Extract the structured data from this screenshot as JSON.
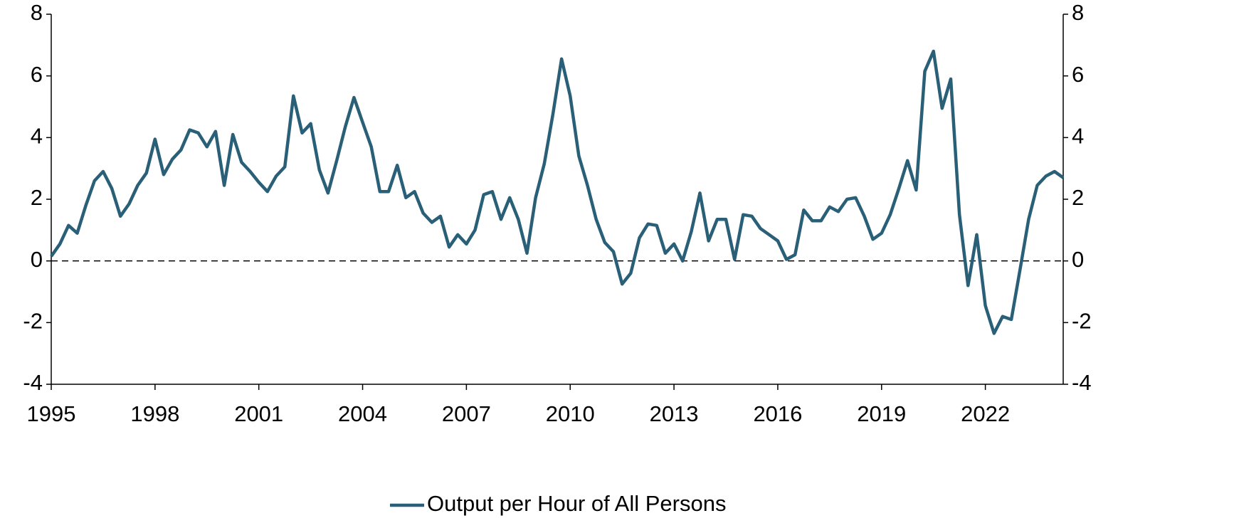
{
  "chart_data": {
    "type": "line",
    "x": [
      1995,
      1995.25,
      1995.5,
      1995.75,
      1996,
      1996.25,
      1996.5,
      1996.75,
      1997,
      1997.25,
      1997.5,
      1997.75,
      1998,
      1998.25,
      1998.5,
      1998.75,
      1999,
      1999.25,
      1999.5,
      1999.75,
      2000,
      2000.25,
      2000.5,
      2000.75,
      2001,
      2001.25,
      2001.5,
      2001.75,
      2002,
      2002.25,
      2002.5,
      2002.75,
      2003,
      2003.25,
      2003.5,
      2003.75,
      2004,
      2004.25,
      2004.5,
      2004.75,
      2005,
      2005.25,
      2005.5,
      2005.75,
      2006,
      2006.25,
      2006.5,
      2006.75,
      2007,
      2007.25,
      2007.5,
      2007.75,
      2008,
      2008.25,
      2008.5,
      2008.75,
      2009,
      2009.25,
      2009.5,
      2009.75,
      2010,
      2010.25,
      2010.5,
      2010.75,
      2011,
      2011.25,
      2011.5,
      2011.75,
      2012,
      2012.25,
      2012.5,
      2012.75,
      2013,
      2013.25,
      2013.5,
      2013.75,
      2014,
      2014.25,
      2014.5,
      2014.75,
      2015,
      2015.25,
      2015.5,
      2015.75,
      2016,
      2016.25,
      2016.5,
      2016.75,
      2017,
      2017.25,
      2017.5,
      2017.75,
      2018,
      2018.25,
      2018.5,
      2018.75,
      2019,
      2019.25,
      2019.5,
      2019.75,
      2020,
      2020.25,
      2020.5,
      2020.75,
      2021,
      2021.25,
      2021.5,
      2021.75,
      2022,
      2022.25,
      2022.5,
      2022.75,
      2023,
      2023.25,
      2023.5,
      2023.75,
      2024,
      2024.25
    ],
    "series": [
      {
        "name": "Output per Hour of All Persons",
        "color": "#2a5f78",
        "values": [
          0.15,
          0.55,
          1.15,
          0.9,
          1.8,
          2.6,
          2.9,
          2.35,
          1.45,
          1.85,
          2.45,
          2.85,
          3.95,
          2.8,
          3.3,
          3.6,
          4.25,
          4.15,
          3.7,
          4.2,
          2.45,
          4.1,
          3.2,
          2.9,
          2.55,
          2.25,
          2.75,
          3.05,
          5.35,
          4.15,
          4.45,
          2.95,
          2.2,
          3.25,
          4.35,
          5.3,
          4.5,
          3.7,
          2.25,
          2.25,
          3.1,
          2.05,
          2.25,
          1.55,
          1.25,
          1.45,
          0.45,
          0.85,
          0.55,
          1.0,
          2.15,
          2.25,
          1.35,
          2.05,
          1.35,
          0.25,
          2.05,
          3.15,
          4.75,
          6.55,
          5.35,
          3.4,
          2.45,
          1.35,
          0.6,
          0.3,
          -0.75,
          -0.4,
          0.75,
          1.2,
          1.15,
          0.25,
          0.55,
          0.0,
          0.95,
          2.2,
          0.65,
          1.35,
          1.35,
          0.05,
          1.5,
          1.45,
          1.05,
          0.85,
          0.65,
          0.05,
          0.2,
          1.65,
          1.3,
          1.3,
          1.75,
          1.6,
          2.0,
          2.05,
          1.45,
          0.7,
          0.9,
          1.5,
          2.35,
          3.25,
          2.3,
          6.15,
          6.8,
          4.95,
          5.9,
          1.5,
          -0.8,
          0.85,
          -1.45,
          -2.35,
          -1.8,
          -1.9,
          -0.3,
          1.35,
          2.45,
          2.75,
          2.9,
          2.7
        ]
      }
    ],
    "xlim": [
      1995,
      2024.25
    ],
    "xticks": [
      1995,
      1998,
      2001,
      2004,
      2007,
      2010,
      2013,
      2016,
      2019,
      2022
    ],
    "ylim": [
      -4,
      8
    ],
    "yticks": [
      -4,
      -2,
      0,
      2,
      4,
      6,
      8
    ],
    "y2lim": [
      -4,
      8
    ],
    "y2ticks": [
      -4,
      -2,
      0,
      2,
      4,
      6,
      8
    ],
    "legend": "bottom"
  }
}
